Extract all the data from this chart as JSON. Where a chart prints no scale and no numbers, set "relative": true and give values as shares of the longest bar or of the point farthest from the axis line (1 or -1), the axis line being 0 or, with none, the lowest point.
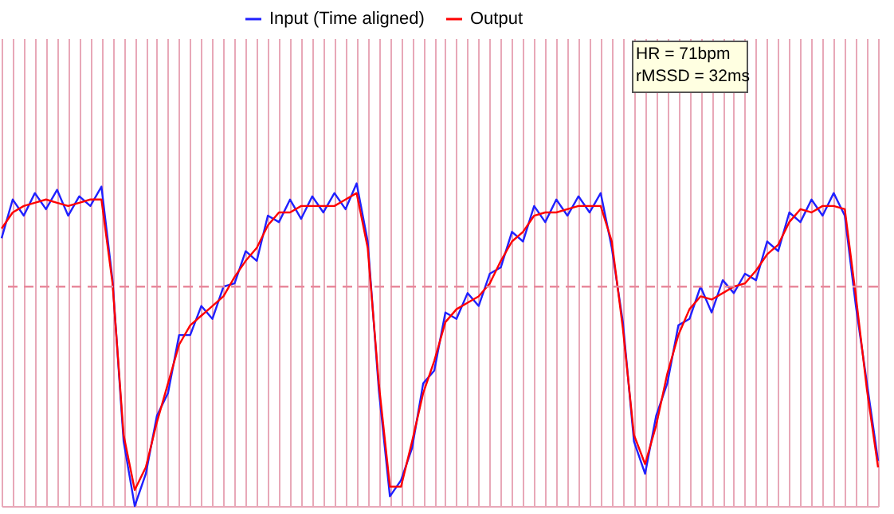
{
  "chart_data": {
    "type": "line",
    "relative": true,
    "categories": [
      null,
      null,
      null,
      null,
      null,
      null,
      null,
      null,
      null,
      null,
      null,
      null,
      null,
      null,
      null,
      null,
      null,
      null,
      null,
      null,
      null,
      null,
      null,
      null,
      null,
      null,
      null,
      null,
      null,
      null,
      null,
      null,
      null,
      null,
      null,
      null,
      null,
      null,
      null,
      null,
      null,
      null,
      null,
      null,
      null,
      null,
      null,
      null,
      null,
      null,
      null,
      null,
      null,
      null,
      null,
      null,
      null,
      null,
      null,
      null,
      null,
      null,
      null,
      null,
      null,
      null,
      null,
      null,
      null,
      null,
      null,
      null,
      null,
      null,
      null,
      null,
      null,
      null,
      null,
      null
    ],
    "series": [
      {
        "name": "Input (Time aligned)",
        "color": "#2020ff",
        "values": [
          0.83,
          0.95,
          0.9,
          0.97,
          0.92,
          0.98,
          0.9,
          0.96,
          0.93,
          0.99,
          0.7,
          0.2,
          0.0,
          0.1,
          0.28,
          0.35,
          0.53,
          0.53,
          0.62,
          0.58,
          0.68,
          0.69,
          0.79,
          0.76,
          0.9,
          0.88,
          0.95,
          0.89,
          0.96,
          0.91,
          0.97,
          0.92,
          1.0,
          0.82,
          0.36,
          0.03,
          0.08,
          0.18,
          0.38,
          0.42,
          0.6,
          0.58,
          0.66,
          0.62,
          0.72,
          0.74,
          0.85,
          0.82,
          0.93,
          0.88,
          0.95,
          0.9,
          0.96,
          0.91,
          0.97,
          0.8,
          0.57,
          0.2,
          0.1,
          0.28,
          0.38,
          0.56,
          0.58,
          0.68,
          0.6,
          0.7,
          0.66,
          0.72,
          0.7,
          0.82,
          0.79,
          0.91,
          0.88,
          0.95,
          0.9,
          0.97,
          0.9,
          0.62,
          0.38,
          0.14
        ]
      },
      {
        "name": "Output",
        "color": "#ff0000",
        "values": [
          0.86,
          0.91,
          0.93,
          0.94,
          0.95,
          0.94,
          0.93,
          0.94,
          0.95,
          0.95,
          0.69,
          0.22,
          0.05,
          0.12,
          0.26,
          0.38,
          0.5,
          0.56,
          0.59,
          0.62,
          0.65,
          0.71,
          0.76,
          0.8,
          0.87,
          0.91,
          0.91,
          0.93,
          0.93,
          0.93,
          0.93,
          0.95,
          0.97,
          0.8,
          0.38,
          0.06,
          0.06,
          0.2,
          0.35,
          0.45,
          0.57,
          0.61,
          0.63,
          0.65,
          0.69,
          0.76,
          0.82,
          0.85,
          0.9,
          0.91,
          0.91,
          0.92,
          0.93,
          0.93,
          0.93,
          0.82,
          0.55,
          0.22,
          0.13,
          0.25,
          0.41,
          0.53,
          0.61,
          0.65,
          0.64,
          0.66,
          0.68,
          0.69,
          0.73,
          0.78,
          0.81,
          0.88,
          0.92,
          0.91,
          0.93,
          0.93,
          0.92,
          0.65,
          0.36,
          0.12
        ]
      }
    ],
    "ref_lines": [
      {
        "axis": "y",
        "value": 0.68,
        "color": "#e8899c",
        "line_style": "dashed"
      }
    ],
    "annotations": [
      "HR = 71bpm\nrMSSD = 32ms"
    ],
    "legend": "top",
    "grid": "x",
    "tick_labels": false,
    "line_style": "solid",
    "marker": "none"
  }
}
